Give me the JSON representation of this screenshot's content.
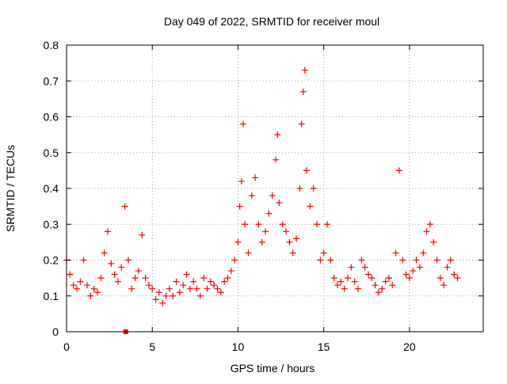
{
  "chart_data": {
    "type": "scatter",
    "title": "Day 049 of 2022, SRMTID for receiver moul",
    "xlabel": "GPS time / hours",
    "ylabel": "SRMTID / TECUs",
    "xlim": [
      0,
      24.3
    ],
    "ylim": [
      0,
      0.8
    ],
    "x_ticks": [
      "0",
      "5",
      "10",
      "15",
      "20"
    ],
    "x_tick_values": [
      0,
      5,
      10,
      15,
      20
    ],
    "y_ticks": [
      "0",
      "0.1",
      "0.2",
      "0.3",
      "0.4",
      "0.5",
      "0.6",
      "0.7",
      "0.8"
    ],
    "y_tick_values": [
      0,
      0.1,
      0.2,
      0.3,
      0.4,
      0.5,
      0.6,
      0.7,
      0.8
    ],
    "grid": true,
    "marker": "plus",
    "series": [
      {
        "name": "SRMTID",
        "color": "#ff0000",
        "points": [
          [
            0.0,
            0.2
          ],
          [
            0.2,
            0.16
          ],
          [
            0.4,
            0.13
          ],
          [
            0.6,
            0.12
          ],
          [
            0.8,
            0.14
          ],
          [
            1.0,
            0.2
          ],
          [
            1.2,
            0.13
          ],
          [
            1.4,
            0.1
          ],
          [
            1.6,
            0.12
          ],
          [
            1.8,
            0.11
          ],
          [
            2.0,
            0.15
          ],
          [
            2.2,
            0.22
          ],
          [
            2.4,
            0.28
          ],
          [
            2.6,
            0.19
          ],
          [
            2.8,
            0.16
          ],
          [
            3.0,
            0.14
          ],
          [
            3.2,
            0.18
          ],
          [
            3.4,
            0.35
          ],
          [
            3.6,
            0.2
          ],
          [
            3.8,
            0.12
          ],
          [
            4.0,
            0.15
          ],
          [
            4.2,
            0.17
          ],
          [
            4.4,
            0.27
          ],
          [
            4.6,
            0.15
          ],
          [
            4.8,
            0.13
          ],
          [
            5.0,
            0.12
          ],
          [
            5.2,
            0.09
          ],
          [
            5.4,
            0.11
          ],
          [
            5.6,
            0.08
          ],
          [
            5.8,
            0.1
          ],
          [
            6.0,
            0.12
          ],
          [
            6.2,
            0.1
          ],
          [
            6.4,
            0.14
          ],
          [
            6.6,
            0.11
          ],
          [
            6.8,
            0.13
          ],
          [
            7.0,
            0.16
          ],
          [
            7.2,
            0.12
          ],
          [
            7.4,
            0.14
          ],
          [
            7.6,
            0.12
          ],
          [
            7.8,
            0.1
          ],
          [
            8.0,
            0.15
          ],
          [
            8.2,
            0.12
          ],
          [
            8.4,
            0.14
          ],
          [
            8.6,
            0.13
          ],
          [
            8.8,
            0.12
          ],
          [
            9.0,
            0.11
          ],
          [
            9.2,
            0.14
          ],
          [
            9.4,
            0.15
          ],
          [
            9.6,
            0.17
          ],
          [
            9.8,
            0.2
          ],
          [
            10.0,
            0.25
          ],
          [
            10.1,
            0.35
          ],
          [
            10.2,
            0.42
          ],
          [
            10.3,
            0.58
          ],
          [
            10.4,
            0.3
          ],
          [
            10.6,
            0.22
          ],
          [
            10.8,
            0.38
          ],
          [
            11.0,
            0.43
          ],
          [
            11.2,
            0.3
          ],
          [
            11.4,
            0.25
          ],
          [
            11.6,
            0.28
          ],
          [
            11.8,
            0.33
          ],
          [
            12.0,
            0.38
          ],
          [
            12.2,
            0.48
          ],
          [
            12.3,
            0.55
          ],
          [
            12.4,
            0.36
          ],
          [
            12.6,
            0.3
          ],
          [
            12.8,
            0.28
          ],
          [
            13.0,
            0.25
          ],
          [
            13.2,
            0.22
          ],
          [
            13.4,
            0.26
          ],
          [
            13.6,
            0.4
          ],
          [
            13.7,
            0.58
          ],
          [
            13.8,
            0.67
          ],
          [
            13.9,
            0.73
          ],
          [
            14.0,
            0.45
          ],
          [
            14.2,
            0.35
          ],
          [
            14.4,
            0.4
          ],
          [
            14.6,
            0.3
          ],
          [
            14.8,
            0.2
          ],
          [
            15.0,
            0.22
          ],
          [
            15.2,
            0.3
          ],
          [
            15.4,
            0.2
          ],
          [
            15.6,
            0.15
          ],
          [
            15.8,
            0.13
          ],
          [
            16.0,
            0.14
          ],
          [
            16.2,
            0.12
          ],
          [
            16.4,
            0.15
          ],
          [
            16.6,
            0.18
          ],
          [
            16.8,
            0.14
          ],
          [
            17.0,
            0.12
          ],
          [
            17.2,
            0.2
          ],
          [
            17.4,
            0.18
          ],
          [
            17.6,
            0.16
          ],
          [
            17.8,
            0.15
          ],
          [
            18.0,
            0.13
          ],
          [
            18.2,
            0.11
          ],
          [
            18.4,
            0.12
          ],
          [
            18.6,
            0.14
          ],
          [
            18.8,
            0.15
          ],
          [
            19.0,
            0.13
          ],
          [
            19.2,
            0.22
          ],
          [
            19.4,
            0.45
          ],
          [
            19.6,
            0.2
          ],
          [
            19.8,
            0.16
          ],
          [
            20.0,
            0.15
          ],
          [
            20.2,
            0.17
          ],
          [
            20.4,
            0.2
          ],
          [
            20.6,
            0.18
          ],
          [
            20.8,
            0.22
          ],
          [
            21.0,
            0.28
          ],
          [
            21.2,
            0.3
          ],
          [
            21.4,
            0.25
          ],
          [
            21.6,
            0.2
          ],
          [
            21.8,
            0.15
          ],
          [
            22.0,
            0.13
          ],
          [
            22.2,
            0.18
          ],
          [
            22.4,
            0.2
          ],
          [
            22.6,
            0.16
          ],
          [
            22.8,
            0.15
          ]
        ]
      },
      {
        "name": "SRMTID (square marker)",
        "color": "#ff0000",
        "marker": "square",
        "points": [
          [
            3.45,
            0.0
          ]
        ]
      }
    ]
  }
}
